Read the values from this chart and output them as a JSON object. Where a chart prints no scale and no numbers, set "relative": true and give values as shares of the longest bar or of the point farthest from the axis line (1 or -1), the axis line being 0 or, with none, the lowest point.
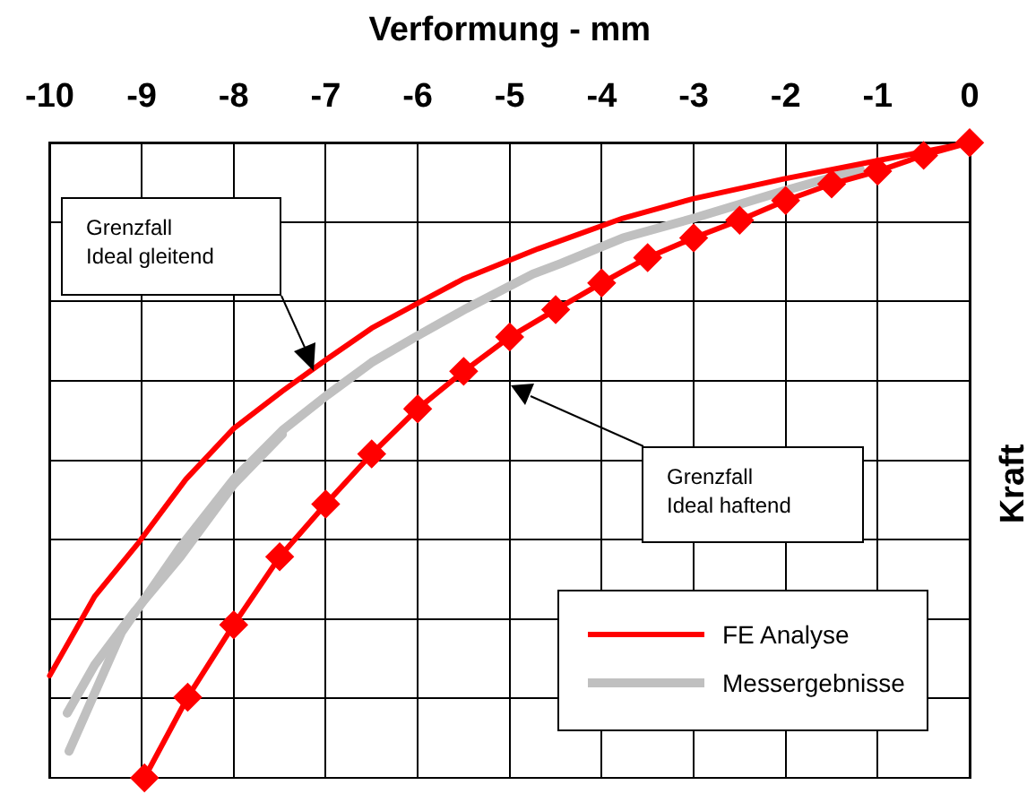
{
  "chart_data": {
    "type": "line",
    "xlabel": "Verformung - mm",
    "ylabel": "Kraft",
    "relative": true,
    "xlim": [
      -10,
      0
    ],
    "xticks": [
      -10,
      -9,
      -8,
      -7,
      -6,
      -5,
      -4,
      -3,
      -2,
      -1,
      0
    ],
    "grid": true,
    "legend": "bottom right",
    "series": [
      {
        "name": "FE Analyse",
        "color": "#ff0000",
        "marker": "none",
        "x": [
          -10,
          -9.51,
          -9.03,
          -8.52,
          -8.0,
          -7.47,
          -6.98,
          -6.5,
          -5.99,
          -5.51,
          -4.69,
          -3.77,
          -3.0,
          -2.02,
          -0.99,
          0
        ],
        "values": [
          -0.839,
          -0.714,
          -0.629,
          -0.53,
          -0.45,
          -0.391,
          -0.34,
          -0.292,
          -0.252,
          -0.215,
          -0.167,
          -0.119,
          -0.088,
          -0.057,
          -0.028,
          0
        ]
      },
      {
        "color": "#ff0000",
        "marker": "diamond",
        "x": [
          -8.97,
          -8.5,
          -8.0,
          -7.5,
          -7.0,
          -6.5,
          -6.0,
          -5.5,
          -5.0,
          -4.5,
          -4.0,
          -3.5,
          -3.0,
          -2.5,
          -2.0,
          -1.5,
          -1.0,
          -0.5,
          0
        ],
        "values": [
          -1,
          -0.873,
          -0.759,
          -0.652,
          -0.569,
          -0.49,
          -0.419,
          -0.36,
          -0.306,
          -0.263,
          -0.221,
          -0.181,
          -0.15,
          -0.122,
          -0.091,
          -0.065,
          -0.045,
          -0.02,
          0
        ]
      },
      {
        "name": "Messergebnisse",
        "color": "#c0c0c0",
        "marker": "none",
        "x": [
          -9.79,
          -9.22,
          -8.58,
          -8.0,
          -7.47,
          -6.98,
          -6.5,
          -5.99,
          -5.47,
          -4.75,
          -4.44,
          -3.77,
          -3.0,
          -2.02,
          -1.19
        ],
        "values": [
          -0.958,
          -0.771,
          -0.637,
          -0.53,
          -0.453,
          -0.397,
          -0.346,
          -0.303,
          -0.261,
          -0.207,
          -0.19,
          -0.15,
          -0.119,
          -0.076,
          -0.042
        ]
      },
      {
        "color": "#c0c0c0",
        "marker": "none",
        "x": [
          -9.81,
          -9.51,
          -9.07,
          -8.58,
          -8.0,
          -7.47
        ],
        "values": [
          -0.898,
          -0.822,
          -0.737,
          -0.652,
          -0.538,
          -0.459
        ]
      }
    ],
    "annotations": [
      "Grenzfall\nIdeal gleitend",
      "Grenzfall\nIdeal haftend"
    ]
  }
}
